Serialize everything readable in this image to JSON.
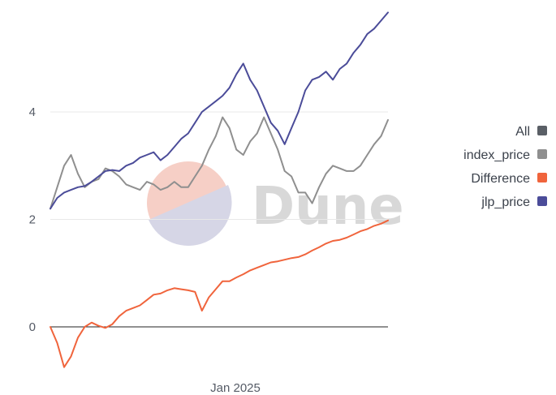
{
  "chart_data": {
    "type": "line",
    "xlabel": "",
    "ylabel": "",
    "x_ticks": [
      "Jan 2025"
    ],
    "y_ticks": [
      0,
      2,
      4
    ],
    "ylim": [
      -0.8,
      5.9
    ],
    "x_points": 50,
    "watermark": "Dune",
    "legend": {
      "placement": "right",
      "all_label": "All",
      "all_color": "#5a5f66"
    },
    "series": [
      {
        "name": "index_price",
        "color": "#8f8f8f",
        "values": [
          2.2,
          2.6,
          3.0,
          3.2,
          2.85,
          2.6,
          2.7,
          2.75,
          2.95,
          2.9,
          2.8,
          2.65,
          2.6,
          2.55,
          2.7,
          2.65,
          2.55,
          2.6,
          2.7,
          2.6,
          2.6,
          2.8,
          3.0,
          3.3,
          3.55,
          3.9,
          3.7,
          3.3,
          3.2,
          3.45,
          3.6,
          3.9,
          3.6,
          3.3,
          2.9,
          2.8,
          2.5,
          2.5,
          2.3,
          2.6,
          2.85,
          3.0,
          2.95,
          2.9,
          2.9,
          3.0,
          3.2,
          3.4,
          3.55,
          3.85
        ]
      },
      {
        "name": "Difference",
        "color": "#f0643c",
        "values": [
          0.0,
          -0.3,
          -0.75,
          -0.55,
          -0.2,
          0.0,
          0.08,
          0.02,
          -0.02,
          0.05,
          0.2,
          0.3,
          0.35,
          0.4,
          0.5,
          0.6,
          0.62,
          0.68,
          0.72,
          0.7,
          0.68,
          0.65,
          0.3,
          0.55,
          0.7,
          0.85,
          0.85,
          0.92,
          0.98,
          1.05,
          1.1,
          1.15,
          1.2,
          1.22,
          1.25,
          1.28,
          1.3,
          1.35,
          1.42,
          1.48,
          1.55,
          1.6,
          1.62,
          1.66,
          1.72,
          1.78,
          1.82,
          1.88,
          1.92,
          1.98
        ]
      },
      {
        "name": "jlp_price",
        "color": "#4b4c99",
        "values": [
          2.2,
          2.4,
          2.5,
          2.55,
          2.6,
          2.62,
          2.7,
          2.8,
          2.9,
          2.92,
          2.9,
          3.0,
          3.05,
          3.15,
          3.2,
          3.25,
          3.1,
          3.2,
          3.35,
          3.5,
          3.6,
          3.8,
          4.0,
          4.1,
          4.2,
          4.3,
          4.45,
          4.7,
          4.9,
          4.6,
          4.4,
          4.1,
          3.8,
          3.65,
          3.4,
          3.7,
          4.0,
          4.4,
          4.6,
          4.65,
          4.75,
          4.6,
          4.8,
          4.9,
          5.1,
          5.25,
          5.45,
          5.55,
          5.7,
          5.85
        ]
      }
    ]
  }
}
